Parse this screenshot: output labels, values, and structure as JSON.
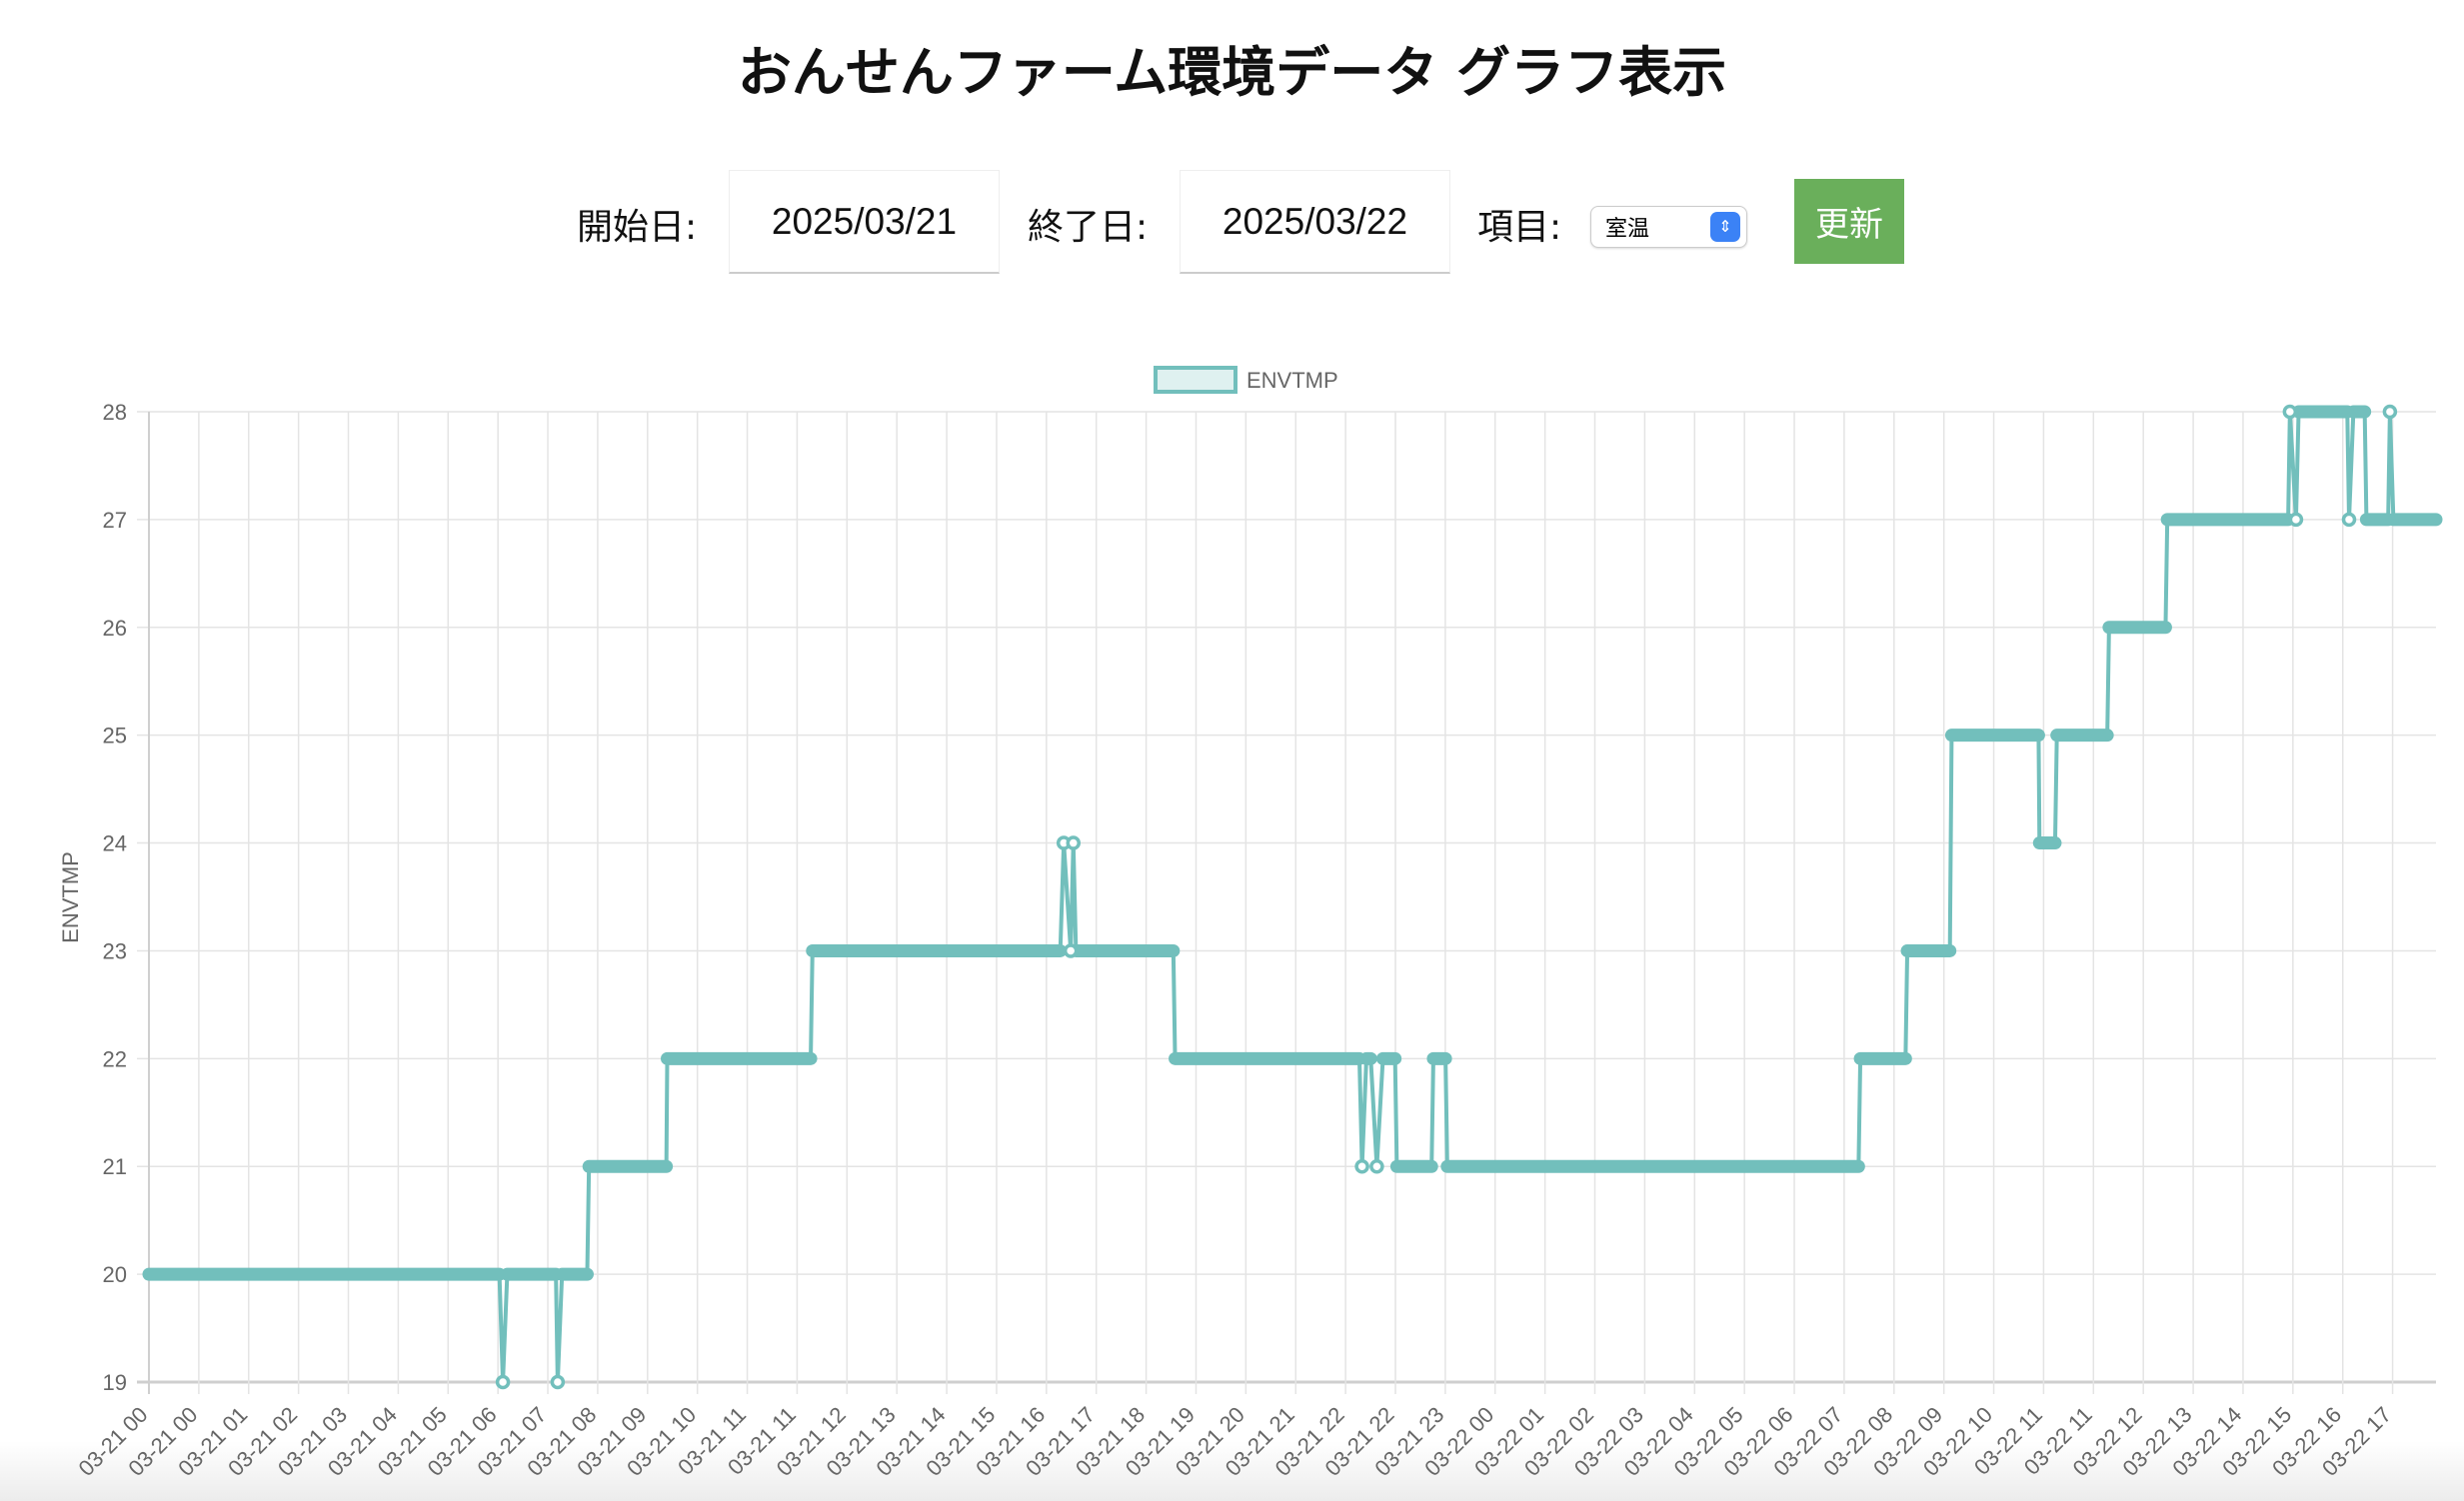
{
  "title": "おんせんファーム環境データ グラフ表示",
  "controls": {
    "start_label": "開始日:",
    "start_value": "2025/03/21",
    "end_label": "終了日:",
    "end_value": "2025/03/22",
    "item_label": "項目:",
    "item_selected": "室温",
    "update_button": "更新"
  },
  "chart_data": {
    "type": "line",
    "legend": {
      "entries": [
        "ENVTMP"
      ],
      "placement": "top"
    },
    "ylabel": "ENVTMP",
    "xlabel": "",
    "ylim": [
      19,
      28
    ],
    "yticks": [
      19,
      20,
      21,
      22,
      23,
      24,
      25,
      26,
      27,
      28
    ],
    "grid": true,
    "color": "#72bfbc",
    "x_range": [
      "03-21 00:00",
      "03-22 19:50"
    ],
    "xtick_labels": [
      "03-21 00",
      "03-21 00",
      "03-21 01",
      "03-21 02",
      "03-21 03",
      "03-21 04",
      "03-21 05",
      "03-21 06",
      "03-21 07",
      "03-21 08",
      "03-21 09",
      "03-21 10",
      "03-21 11",
      "03-21 11",
      "03-21 12",
      "03-21 13",
      "03-21 14",
      "03-21 15",
      "03-21 16",
      "03-21 17",
      "03-21 18",
      "03-21 19",
      "03-21 20",
      "03-21 21",
      "03-21 22",
      "03-21 22",
      "03-21 23",
      "03-22 00",
      "03-22 01",
      "03-22 02",
      "03-22 03",
      "03-22 04",
      "03-22 05",
      "03-22 06",
      "03-22 07",
      "03-22 08",
      "03-22 09",
      "03-22 10",
      "03-22 11",
      "03-22 11",
      "03-22 12",
      "03-22 13",
      "03-22 14",
      "03-22 15",
      "03-22 16",
      "03-22 17"
    ],
    "series": [
      {
        "name": "ENVTMP",
        "points": [
          [
            "03-21 00:00",
            20
          ],
          [
            "03-21 06:43",
            20
          ],
          [
            "03-21 06:47",
            19
          ],
          [
            "03-21 06:52",
            20
          ],
          [
            "03-21 07:48",
            20
          ],
          [
            "03-21 07:50",
            19
          ],
          [
            "03-21 07:55",
            20
          ],
          [
            "03-21 08:24",
            20
          ],
          [
            "03-21 08:26",
            21
          ],
          [
            "03-21 09:55",
            21
          ],
          [
            "03-21 09:56",
            22
          ],
          [
            "03-21 12:41",
            22
          ],
          [
            "03-21 12:43",
            23
          ],
          [
            "03-21 17:28",
            23
          ],
          [
            "03-21 17:32",
            24
          ],
          [
            "03-21 17:40",
            23
          ],
          [
            "03-21 17:43",
            24
          ],
          [
            "03-21 17:46",
            23
          ],
          [
            "03-21 19:38",
            23
          ],
          [
            "03-21 19:40",
            22
          ],
          [
            "03-21 23:12",
            22
          ],
          [
            "03-21 23:15",
            21
          ],
          [
            "03-21 23:20",
            22
          ],
          [
            "03-21 23:25",
            22
          ],
          [
            "03-21 23:32",
            21
          ],
          [
            "03-21 23:39",
            22
          ],
          [
            "03-21 23:53",
            22
          ],
          [
            "03-21 23:55",
            21
          ],
          [
            "03-22 00:35",
            21
          ],
          [
            "03-22 00:37",
            22
          ],
          [
            "03-22 00:51",
            22
          ],
          [
            "03-22 00:53",
            21
          ],
          [
            "03-22 08:46",
            21
          ],
          [
            "03-22 08:48",
            22
          ],
          [
            "03-22 09:40",
            22
          ],
          [
            "03-22 09:42",
            23
          ],
          [
            "03-22 10:31",
            23
          ],
          [
            "03-22 10:33",
            25
          ],
          [
            "03-22 12:13",
            25
          ],
          [
            "03-22 12:14",
            24
          ],
          [
            "03-22 12:32",
            24
          ],
          [
            "03-22 12:34",
            25
          ],
          [
            "03-22 13:32",
            25
          ],
          [
            "03-22 13:34",
            26
          ],
          [
            "03-22 14:39",
            26
          ],
          [
            "03-22 14:41",
            27
          ],
          [
            "03-22 17:00",
            27
          ],
          [
            "03-22 17:02",
            28
          ],
          [
            "03-22 17:09",
            27
          ],
          [
            "03-22 17:12",
            28
          ],
          [
            "03-22 18:08",
            28
          ],
          [
            "03-22 18:10",
            27
          ],
          [
            "03-22 18:15",
            28
          ],
          [
            "03-22 18:28",
            28
          ],
          [
            "03-22 18:30",
            27
          ],
          [
            "03-22 18:55",
            27
          ],
          [
            "03-22 18:57",
            28
          ],
          [
            "03-22 19:01",
            27
          ],
          [
            "03-22 19:50",
            27
          ]
        ]
      }
    ]
  }
}
